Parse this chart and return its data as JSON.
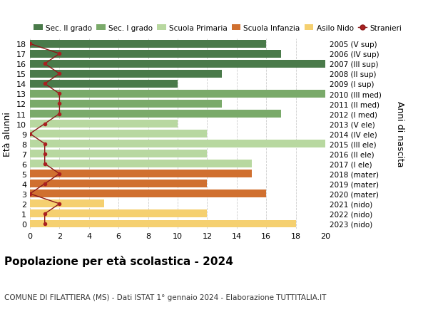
{
  "ages": [
    18,
    17,
    16,
    15,
    14,
    13,
    12,
    11,
    10,
    9,
    8,
    7,
    6,
    5,
    4,
    3,
    2,
    1,
    0
  ],
  "right_labels": [
    "2005 (V sup)",
    "2006 (IV sup)",
    "2007 (III sup)",
    "2008 (II sup)",
    "2009 (I sup)",
    "2010 (III med)",
    "2011 (II med)",
    "2012 (I med)",
    "2013 (V ele)",
    "2014 (IV ele)",
    "2015 (III ele)",
    "2016 (II ele)",
    "2017 (I ele)",
    "2018 (mater)",
    "2019 (mater)",
    "2020 (mater)",
    "2021 (nido)",
    "2022 (nido)",
    "2023 (nido)"
  ],
  "bar_values": [
    16,
    17,
    20,
    13,
    10,
    20,
    13,
    17,
    10,
    12,
    21,
    12,
    15,
    15,
    12,
    16,
    5,
    12,
    18
  ],
  "bar_colors": [
    "#4a7a4a",
    "#4a7a4a",
    "#4a7a4a",
    "#4a7a4a",
    "#4a7a4a",
    "#7aaa6a",
    "#7aaa6a",
    "#7aaa6a",
    "#b8d8a0",
    "#b8d8a0",
    "#b8d8a0",
    "#b8d8a0",
    "#b8d8a0",
    "#d07030",
    "#d07030",
    "#d07030",
    "#f5d070",
    "#f5d070",
    "#f5d070"
  ],
  "stranieri_values": [
    0,
    2,
    1,
    2,
    1,
    2,
    2,
    2,
    1,
    0,
    1,
    1,
    1,
    2,
    1,
    0,
    2,
    1,
    1
  ],
  "title": "Popolazione per età scolastica - 2024",
  "subtitle": "COMUNE DI FILATTIERA (MS) - Dati ISTAT 1° gennaio 2024 - Elaborazione TUTTITALIA.IT",
  "ylabel": "Età alunni",
  "right_ylabel": "Anni di nascita",
  "xlim_max": 20,
  "legend_labels": [
    "Sec. II grado",
    "Sec. I grado",
    "Scuola Primaria",
    "Scuola Infanzia",
    "Asilo Nido",
    "Stranieri"
  ],
  "legend_colors": [
    "#4a7a4a",
    "#7aaa6a",
    "#b8d8a0",
    "#d07030",
    "#f5d070",
    "#aa2020"
  ],
  "bg_color": "#ffffff",
  "bar_height": 0.78,
  "grid_color": "#cccccc",
  "stranieri_line_color": "#8b1a1a",
  "stranieri_dot_color": "#aa2020"
}
